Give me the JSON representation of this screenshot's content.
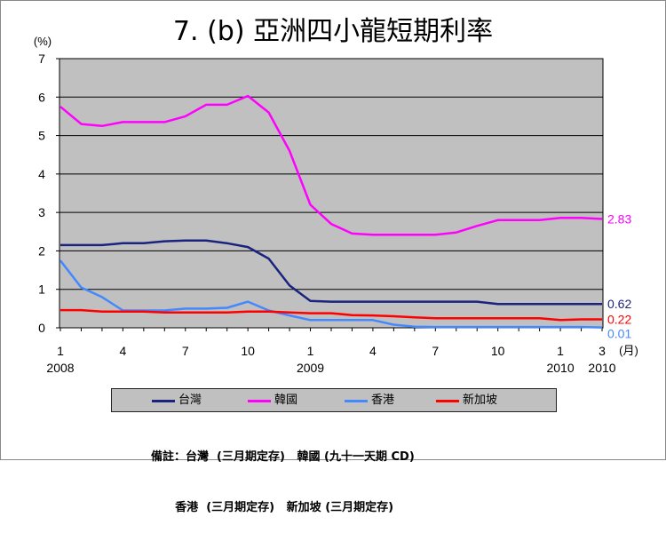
{
  "chart_data": {
    "type": "line",
    "title": "7. (b)  亞洲四小龍短期利率",
    "ylabel": "(%)",
    "xlabel_unit": "(月)",
    "ylim": [
      0,
      7
    ],
    "yticks": [
      "0",
      "1",
      "2",
      "3",
      "4",
      "5",
      "6",
      "7"
    ],
    "grid": true,
    "x_months": [
      "2008-01",
      "2008-02",
      "2008-03",
      "2008-04",
      "2008-05",
      "2008-06",
      "2008-07",
      "2008-08",
      "2008-09",
      "2008-10",
      "2008-11",
      "2008-12",
      "2009-01",
      "2009-02",
      "2009-03",
      "2009-04",
      "2009-05",
      "2009-06",
      "2009-07",
      "2009-08",
      "2009-09",
      "2009-10",
      "2009-11",
      "2009-12",
      "2010-01",
      "2010-02",
      "2010-03"
    ],
    "xtick_labels": [
      {
        "month": "2008-01",
        "label": "1",
        "year": "2008"
      },
      {
        "month": "2008-04",
        "label": "4",
        "year": ""
      },
      {
        "month": "2008-07",
        "label": "7",
        "year": ""
      },
      {
        "month": "2008-10",
        "label": "10",
        "year": ""
      },
      {
        "month": "2009-01",
        "label": "1",
        "year": "2009"
      },
      {
        "month": "2009-04",
        "label": "4",
        "year": ""
      },
      {
        "month": "2009-07",
        "label": "7",
        "year": ""
      },
      {
        "month": "2009-10",
        "label": "10",
        "year": ""
      },
      {
        "month": "2010-01",
        "label": "1",
        "year": "2010"
      },
      {
        "month": "2010-03",
        "label": "3",
        "year": "2010"
      }
    ],
    "series": [
      {
        "name": "台灣",
        "color": "#1a237e",
        "end_label": "0.62",
        "values": [
          2.15,
          2.15,
          2.15,
          2.2,
          2.2,
          2.25,
          2.27,
          2.27,
          2.2,
          2.1,
          1.8,
          1.1,
          0.7,
          0.68,
          0.68,
          0.68,
          0.68,
          0.68,
          0.68,
          0.68,
          0.68,
          0.62,
          0.62,
          0.62,
          0.62,
          0.62,
          0.62
        ]
      },
      {
        "name": "韓國",
        "color": "#ff00ff",
        "end_label": "2.83",
        "values": [
          5.75,
          5.3,
          5.25,
          5.35,
          5.35,
          5.35,
          5.5,
          5.8,
          5.8,
          6.03,
          5.6,
          4.6,
          3.2,
          2.7,
          2.45,
          2.42,
          2.42,
          2.42,
          2.42,
          2.48,
          2.65,
          2.8,
          2.8,
          2.8,
          2.86,
          2.86,
          2.83
        ]
      },
      {
        "name": "香港",
        "color": "#4488ff",
        "end_label": "0.01",
        "values": [
          1.75,
          1.05,
          0.8,
          0.45,
          0.45,
          0.45,
          0.5,
          0.5,
          0.52,
          0.68,
          0.45,
          0.32,
          0.2,
          0.2,
          0.2,
          0.2,
          0.08,
          0.03,
          0.02,
          0.02,
          0.02,
          0.02,
          0.02,
          0.02,
          0.02,
          0.02,
          0.01
        ]
      },
      {
        "name": "新加坡",
        "color": "#ff0000",
        "end_label": "0.22",
        "values": [
          0.46,
          0.46,
          0.42,
          0.42,
          0.42,
          0.4,
          0.4,
          0.4,
          0.4,
          0.42,
          0.42,
          0.4,
          0.38,
          0.38,
          0.33,
          0.32,
          0.3,
          0.27,
          0.25,
          0.25,
          0.25,
          0.25,
          0.25,
          0.25,
          0.2,
          0.22,
          0.22
        ]
      }
    ],
    "legend_position": "bottom"
  },
  "notes": {
    "line1": "備註：台灣  (三月期定存)   韓國 (九十一天期 CD)",
    "line2": "      香港  (三月期定存)   新加坡 (三月期定存)"
  }
}
